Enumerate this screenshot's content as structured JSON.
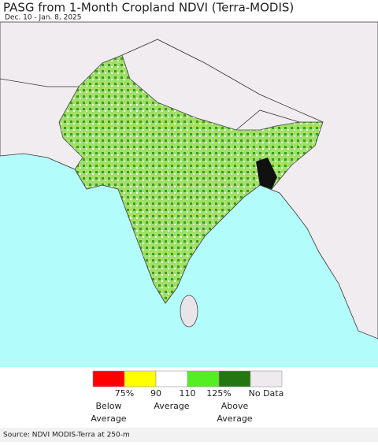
{
  "header": {
    "title": "PASG from 1-Month Cropland NDVI (Terra-MODIS)",
    "subtitle": "Dec. 10 - Jan. 8, 2025"
  },
  "legend": {
    "colors": [
      "#ff0000",
      "#ffff00",
      "#ffffff",
      "#55ee22",
      "#227711",
      "#eeeaee"
    ],
    "tick_labels": [
      "75%",
      "90",
      "110",
      "125%"
    ],
    "no_data_label": "No Data",
    "captions": [
      [
        "Below",
        "Average"
      ],
      [
        "Average"
      ],
      [
        "Above",
        "Average"
      ]
    ]
  },
  "footer": {
    "source": "Source: NDVI MODIS-Terra at 250-m"
  }
}
